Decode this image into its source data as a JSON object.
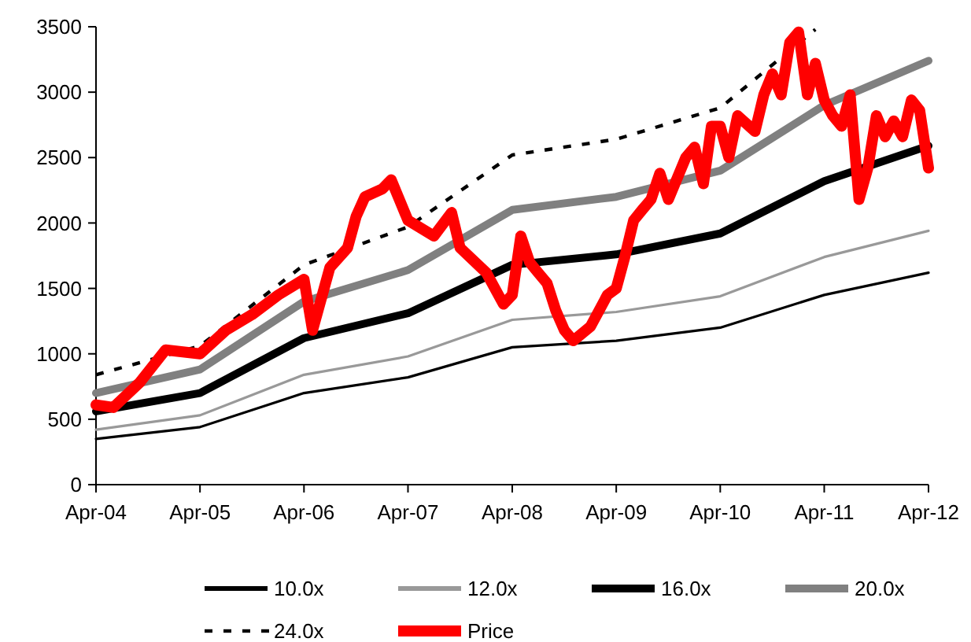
{
  "chart_data": {
    "type": "line",
    "xlim": [
      "2004-04",
      "2012-04"
    ],
    "xticks": [
      {
        "value": "2004-04",
        "label": "Apr-04"
      },
      {
        "value": "2005-04",
        "label": "Apr-05"
      },
      {
        "value": "2006-04",
        "label": "Apr-06"
      },
      {
        "value": "2007-04",
        "label": "Apr-07"
      },
      {
        "value": "2008-04",
        "label": "Apr-08"
      },
      {
        "value": "2009-04",
        "label": "Apr-09"
      },
      {
        "value": "2010-04",
        "label": "Apr-10"
      },
      {
        "value": "2011-04",
        "label": "Apr-11"
      },
      {
        "value": "2012-04",
        "label": "Apr-12"
      }
    ],
    "ylim": [
      0,
      3500
    ],
    "yticks": [
      0,
      500,
      1000,
      1500,
      2000,
      2500,
      3000,
      3500
    ],
    "grid": false,
    "legend": "bottom",
    "marker": "none",
    "series": [
      {
        "name": "10.0x",
        "color": "#000000",
        "line_style": "solid",
        "x": [
          "2004-04",
          "2005-04",
          "2006-04",
          "2007-04",
          "2008-04",
          "2009-04",
          "2010-04",
          "2011-04",
          "2012-04"
        ],
        "values": [
          350,
          440,
          700,
          820,
          1050,
          1100,
          1200,
          1450,
          1620
        ]
      },
      {
        "name": "12.0x",
        "color": "#999999",
        "line_style": "solid",
        "x": [
          "2004-04",
          "2005-04",
          "2006-04",
          "2007-04",
          "2008-04",
          "2009-04",
          "2010-04",
          "2011-04",
          "2012-04"
        ],
        "values": [
          420,
          530,
          840,
          980,
          1260,
          1320,
          1440,
          1740,
          1940
        ]
      },
      {
        "name": "16.0x",
        "color": "#000000",
        "line_style": "solid",
        "x": [
          "2004-04",
          "2005-04",
          "2006-04",
          "2007-04",
          "2008-04",
          "2009-04",
          "2010-04",
          "2011-04",
          "2012-04"
        ],
        "values": [
          560,
          700,
          1120,
          1310,
          1680,
          1760,
          1920,
          2320,
          2590
        ]
      },
      {
        "name": "20.0x",
        "color": "#808080",
        "line_style": "solid",
        "x": [
          "2004-04",
          "2005-04",
          "2006-04",
          "2007-04",
          "2008-04",
          "2009-04",
          "2010-04",
          "2011-04",
          "2012-04"
        ],
        "values": [
          700,
          880,
          1400,
          1640,
          2100,
          2200,
          2400,
          2900,
          3240
        ]
      },
      {
        "name": "24.0x",
        "color": "#000000",
        "line_style": "dashed",
        "x": [
          "2004-04",
          "2005-04",
          "2006-04",
          "2007-04",
          "2008-04",
          "2009-04",
          "2010-04",
          "2011-03"
        ],
        "values": [
          840,
          1060,
          1680,
          1970,
          2520,
          2640,
          2880,
          3480
        ]
      },
      {
        "name": "Price",
        "color": "#ff0000",
        "line_style": "solid",
        "x": [
          "2004-04",
          "2004-06",
          "2004-09",
          "2004-12",
          "2005-04",
          "2005-07",
          "2005-10",
          "2006-01",
          "2006-04",
          "2006-05",
          "2006-07",
          "2006-09",
          "2006-10",
          "2006-11",
          "2007-01",
          "2007-02",
          "2007-04",
          "2007-07",
          "2007-09",
          "2007-10",
          "2008-01",
          "2008-03",
          "2008-04",
          "2008-05",
          "2008-06",
          "2008-07",
          "2008-08",
          "2008-09",
          "2008-10",
          "2008-11",
          "2009-01",
          "2009-03",
          "2009-04",
          "2009-05",
          "2009-06",
          "2009-07",
          "2009-08",
          "2009-09",
          "2009-10",
          "2009-12",
          "2010-01",
          "2010-02",
          "2010-03",
          "2010-04",
          "2010-05",
          "2010-06",
          "2010-08",
          "2010-09",
          "2010-10",
          "2010-11",
          "2010-12",
          "2011-01",
          "2011-02",
          "2011-03",
          "2011-04",
          "2011-05",
          "2011-06",
          "2011-07",
          "2011-08",
          "2011-09",
          "2011-10",
          "2011-11",
          "2011-12",
          "2012-01",
          "2012-02",
          "2012-03",
          "2012-04"
        ],
        "values": [
          610,
          590,
          780,
          1030,
          1000,
          1180,
          1300,
          1450,
          1570,
          1180,
          1660,
          1810,
          2050,
          2200,
          2260,
          2330,
          2020,
          1900,
          2080,
          1810,
          1620,
          1380,
          1450,
          1900,
          1700,
          1620,
          1540,
          1330,
          1180,
          1100,
          1210,
          1450,
          1500,
          1740,
          2020,
          2100,
          2180,
          2380,
          2180,
          2500,
          2580,
          2300,
          2740,
          2740,
          2500,
          2820,
          2700,
          2980,
          3140,
          2980,
          3380,
          3460,
          2980,
          3220,
          2940,
          2820,
          2740,
          2980,
          2180,
          2420,
          2820,
          2660,
          2780,
          2660,
          2940,
          2860,
          2420
        ]
      }
    ]
  }
}
